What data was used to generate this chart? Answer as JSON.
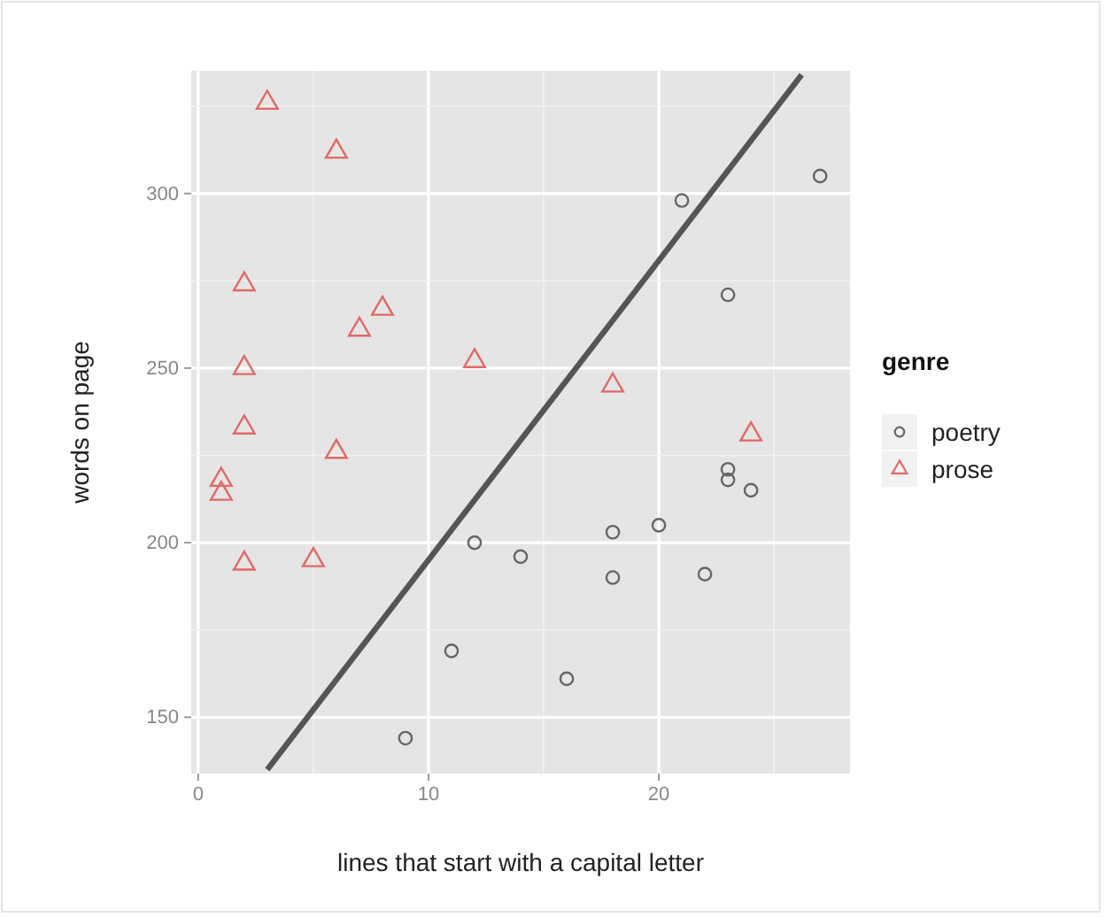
{
  "chart_data": {
    "type": "scatter",
    "xlabel": "lines that start with a capital letter",
    "ylabel": "words on page",
    "legend_title": "genre",
    "xlim": [
      -0.3,
      28.3
    ],
    "xticks": [
      0,
      10,
      20
    ],
    "ylim": [
      133.85,
      335.15
    ],
    "yticks": [
      150,
      200,
      250,
      300
    ],
    "grid": true,
    "legend": "right",
    "series": [
      {
        "name": "poetry",
        "color": "#666666",
        "marker": "circle",
        "x": [
          9,
          11,
          12,
          14,
          16,
          18,
          18,
          20,
          22,
          23,
          23,
          24,
          21,
          23,
          27
        ],
        "values": [
          144,
          169,
          200,
          196,
          161,
          203,
          190,
          205,
          191,
          221,
          218,
          215,
          298,
          271,
          305
        ]
      },
      {
        "name": "prose",
        "color": "#e06a66",
        "marker": "triangle",
        "x": [
          3,
          6,
          2,
          8,
          7,
          2,
          12,
          18,
          2,
          6,
          1,
          1,
          2,
          5,
          24
        ],
        "values": [
          326,
          312,
          274,
          267,
          261,
          250,
          252,
          245,
          233,
          226,
          218,
          214,
          194,
          195,
          231
        ]
      },
      {
        "type": "line",
        "color": "#555555",
        "x": [
          3,
          26.2
        ],
        "values": [
          135,
          334
        ]
      }
    ]
  }
}
